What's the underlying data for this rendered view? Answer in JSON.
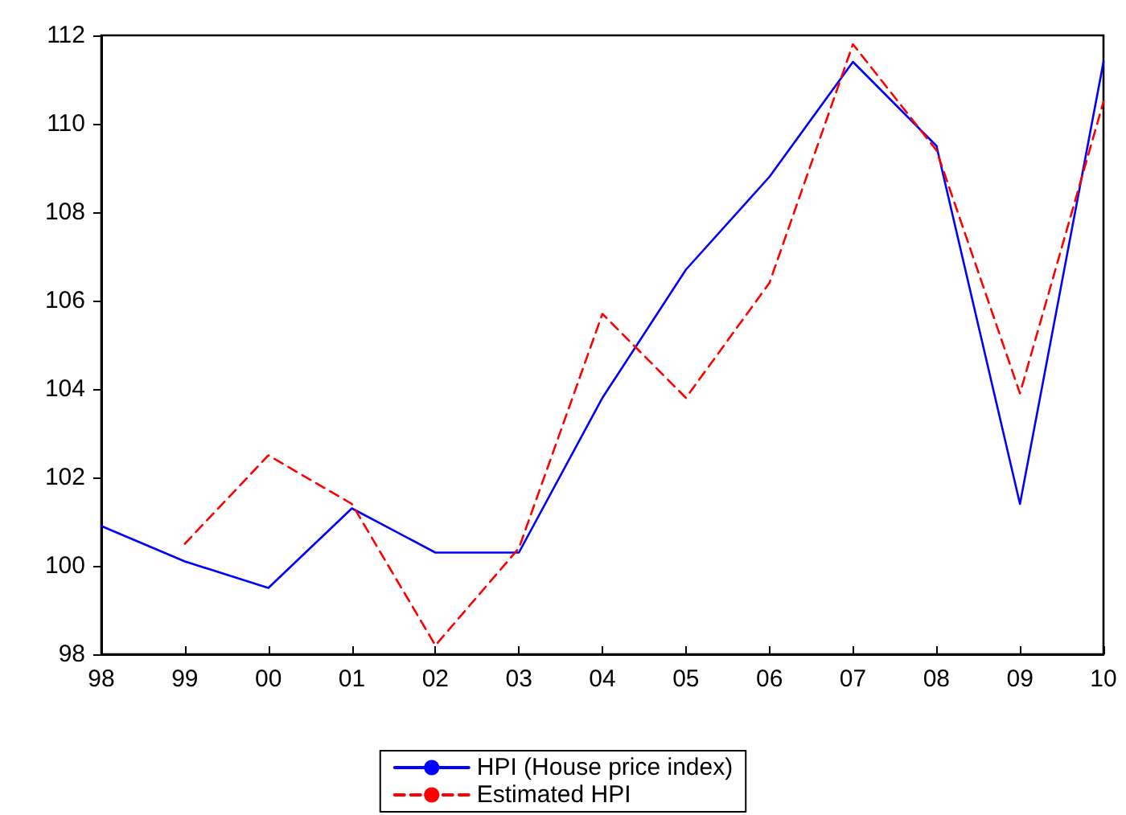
{
  "chart_data": {
    "type": "line",
    "categories": [
      "98",
      "99",
      "00",
      "01",
      "02",
      "03",
      "04",
      "05",
      "06",
      "07",
      "08",
      "09",
      "10"
    ],
    "series": [
      {
        "name": "HPI (House price index)",
        "color": "#0000ff",
        "line_style": "solid",
        "values": [
          100.9,
          100.1,
          99.5,
          101.3,
          100.3,
          100.3,
          103.8,
          106.7,
          108.8,
          111.4,
          109.5,
          101.4,
          111.4
        ]
      },
      {
        "name": "Estimated HPI",
        "color": "#ff0000",
        "line_style": "dashed",
        "values": [
          null,
          100.5,
          102.5,
          101.4,
          98.2,
          100.4,
          105.7,
          103.8,
          106.4,
          111.8,
          109.4,
          103.9,
          110.5
        ]
      }
    ],
    "ylim": [
      98,
      112
    ],
    "yticks": [
      98,
      100,
      102,
      104,
      106,
      108,
      110,
      112
    ],
    "grid": false,
    "legend": "bottom",
    "marker": "none"
  }
}
